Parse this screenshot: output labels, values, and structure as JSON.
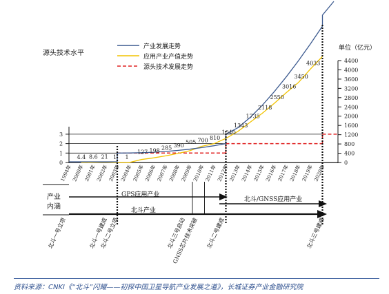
{
  "chart_data": {
    "type": "line",
    "left_axis_label": "源头技术水平",
    "right_axis_label": "单位（亿元）",
    "left_ticks": [
      "0",
      "1",
      "2",
      "3"
    ],
    "right_ticks": [
      "0",
      "400",
      "800",
      "1200",
      "1600",
      "2000",
      "2400",
      "2800",
      "3200",
      "3600",
      "4000",
      "4400"
    ],
    "ylim_left": [
      0,
      3
    ],
    "ylim_right": [
      0,
      4400
    ],
    "x": [
      "1994年",
      "2000年",
      "2001年",
      "2002年",
      "2003年",
      "2004年",
      "2005年",
      "2006年",
      "2007年",
      "2008年",
      "2009年",
      "2010年",
      "2011年",
      "2012年",
      "2013年",
      "2014年",
      "2015年",
      "2016年",
      "2017年",
      "2018年",
      "2019年",
      "2020年"
    ],
    "legend": [
      "产业发展走势",
      "应用产业产值走势",
      "源头技术发展走势"
    ],
    "series": [
      {
        "name": "应用产业产值走势",
        "x": [
          "2000年",
          "2001年",
          "2002年",
          "2003年",
          "2004年",
          "2005年",
          "2006年",
          "2007年",
          "2008年",
          "2009年",
          "2010年",
          "2011年",
          "2012年",
          "2013年",
          "2014年",
          "2015年",
          "2016年",
          "2017年",
          "2018年",
          "2019年",
          "2020年"
        ],
        "values": [
          4.4,
          8.6,
          21,
          1,
          1,
          127,
          198,
          285,
          390,
          505,
          700,
          810,
          1040,
          1343,
          1735,
          2118,
          2550,
          3016,
          3450,
          4033,
          null
        ],
        "labels": [
          "4.4",
          "8.6",
          "21",
          "1",
          "1",
          "127",
          "198",
          "285",
          "390",
          "505",
          "700",
          "810",
          "1040",
          "1343",
          "1735",
          "2118",
          "2550",
          "3016",
          "3450",
          "4033"
        ]
      },
      {
        "name": "源头技术发展走势",
        "steps": [
          {
            "from": "2003年",
            "to": "2012年",
            "level": 1
          },
          {
            "from": "2012年",
            "to": "2020年",
            "level": 2
          },
          {
            "from": "2020年",
            "to": "2020年",
            "level": 3
          }
        ]
      },
      {
        "name": "产业发展走势",
        "shape": "rising curve, stepping up at 2003年, 2012年 and 2020年"
      }
    ],
    "industry_label": "产业\n内涵",
    "arrows": [
      {
        "label": "GPS应用产业"
      },
      {
        "label": "北斗/GNSS应用产业"
      },
      {
        "label": "北斗产业"
      }
    ],
    "milestones": [
      "北斗一号立项",
      "北斗一号建成",
      "北斗二号立项",
      "北斗三号启动",
      "GNSS芯片技术突破",
      "北斗二号建成",
      "北斗三号建成"
    ]
  },
  "source": "资料来源：CNKI《“北斗”闪耀——初探中国卫星导航产业发展之道》，长城证券产业金融研究院",
  "colors": {
    "industry_trend": "#3c5a8f",
    "app_value": "#f2c300",
    "tech_trend": "#e02020",
    "axis": "#111111"
  }
}
